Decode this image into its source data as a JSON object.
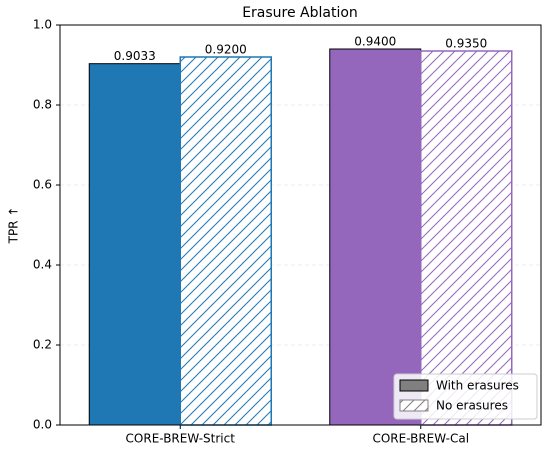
{
  "chart_data": {
    "type": "grouped_bar",
    "title": "Erasure Ablation",
    "ylabel": "TPR ↑",
    "categories": [
      "CORE-BREW-Strict",
      "CORE-BREW-Cal"
    ],
    "category_colors": [
      "#1f77b4",
      "#9467bd"
    ],
    "series": [
      {
        "name": "With erasures",
        "color": "#808080",
        "hatch": false,
        "values": [
          0.9033,
          0.94
        ],
        "value_labels": [
          "0.9033",
          "0.9400"
        ]
      },
      {
        "name": "No erasures",
        "color": "#808080",
        "hatch": true,
        "values": [
          0.92,
          0.935
        ],
        "value_labels": [
          "0.9200",
          "0.9350"
        ]
      }
    ],
    "ylim": [
      0,
      1
    ],
    "yticks": [
      {
        "value": 0,
        "label": "0.0"
      },
      {
        "value": 0.2,
        "label": "0.2"
      },
      {
        "value": 0.4,
        "label": "0.4"
      },
      {
        "value": 0.6,
        "label": "0.6"
      },
      {
        "value": 0.8,
        "label": "0.8"
      },
      {
        "value": 1,
        "label": "1.0"
      }
    ],
    "grid": true,
    "legend": "lower right"
  }
}
